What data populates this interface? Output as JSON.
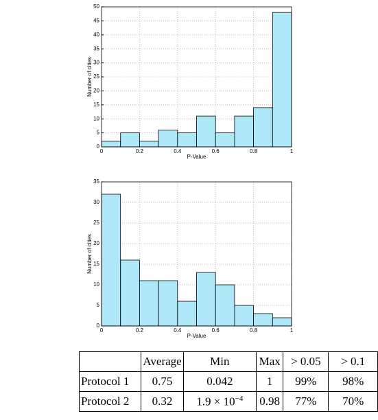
{
  "chart_data": [
    {
      "type": "histogram",
      "bins": [
        0,
        0.1,
        0.2,
        0.3,
        0.4,
        0.5,
        0.6,
        0.7,
        0.8,
        0.9,
        1
      ],
      "values": [
        2,
        5,
        2,
        6,
        5,
        11,
        5,
        11,
        14,
        48
      ],
      "color": "#aee8f8",
      "xlabel": "P-Value",
      "ylabel": "Number of cities",
      "xlim": [
        0,
        1
      ],
      "xticks": [
        0,
        0.2,
        0.4,
        0.6,
        0.8,
        1
      ],
      "ylim": [
        0,
        50
      ],
      "yticks": [
        0,
        5,
        10,
        15,
        20,
        25,
        30,
        35,
        40,
        45,
        50
      ],
      "grid": true
    },
    {
      "type": "histogram",
      "bins": [
        0,
        0.1,
        0.2,
        0.3,
        0.4,
        0.5,
        0.6,
        0.7,
        0.8,
        0.9,
        1
      ],
      "values": [
        32,
        16,
        11,
        11,
        6,
        13,
        10,
        5,
        3,
        2
      ],
      "color": "#aee8f8",
      "xlabel": "P-Value",
      "ylabel": "Number of cities",
      "xlim": [
        0,
        1
      ],
      "xticks": [
        0,
        0.2,
        0.4,
        0.6,
        0.8,
        1
      ],
      "ylim": [
        0,
        35
      ],
      "yticks": [
        0,
        5,
        10,
        15,
        20,
        25,
        30,
        35
      ],
      "grid": true
    }
  ],
  "table": {
    "header": [
      "Average",
      "Min",
      "Max",
      "> 0.05",
      "> 0.1"
    ],
    "rows": [
      [
        "Protocol 1",
        "0.75",
        "0.042",
        "1",
        "99%",
        "98%"
      ],
      [
        "Protocol 2",
        "0.32",
        {
          "mantissa": "1.9 × 10",
          "exponent": "−4"
        },
        "0.98",
        "77%",
        "70%"
      ]
    ]
  }
}
